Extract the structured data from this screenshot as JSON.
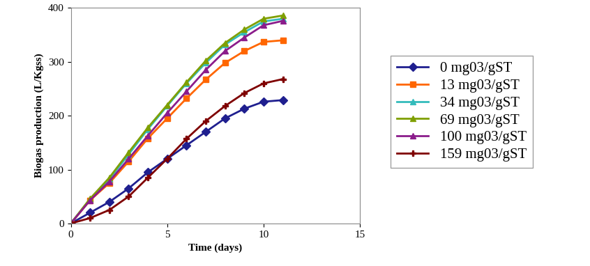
{
  "chart_data": {
    "type": "line",
    "x_label": "Time (days)",
    "y_label": "Biogas production (L/Kgss)",
    "x": [
      0,
      1,
      2,
      3,
      4,
      5,
      6,
      7,
      8,
      9,
      10,
      11
    ],
    "series": [
      {
        "name": "0 mg03/gST",
        "color": "#1F1F8F",
        "marker": "diamond",
        "values": [
          0,
          20,
          40,
          65,
          95,
          120,
          145,
          170,
          195,
          213,
          226,
          229
        ]
      },
      {
        "name": "13 mg03/gST",
        "color": "#FF6600",
        "marker": "square",
        "values": [
          0,
          43,
          75,
          115,
          158,
          195,
          232,
          267,
          298,
          320,
          337,
          340
        ]
      },
      {
        "name": "34 mg03/gST",
        "color": "#33BBBB",
        "marker": "triangle",
        "values": [
          0,
          45,
          82,
          128,
          175,
          218,
          260,
          298,
          332,
          355,
          375,
          380
        ]
      },
      {
        "name": "69 mg03/gST",
        "color": "#7F9F00",
        "marker": "triangle",
        "values": [
          0,
          46,
          85,
          132,
          178,
          220,
          262,
          302,
          335,
          360,
          380,
          386
        ]
      },
      {
        "name": "100 mg03/gST",
        "color": "#8B1C8B",
        "marker": "triangle",
        "values": [
          0,
          43,
          78,
          120,
          163,
          205,
          245,
          285,
          320,
          345,
          368,
          376
        ]
      },
      {
        "name": "159 mg03/gST",
        "color": "#7F0000",
        "marker": "plus",
        "values": [
          0,
          10,
          25,
          50,
          85,
          120,
          157,
          190,
          218,
          242,
          260,
          268
        ]
      }
    ],
    "xlim": [
      0,
      15
    ],
    "xticks": [
      0,
      5,
      10,
      15
    ],
    "ylim": [
      0,
      400
    ],
    "yticks": [
      0,
      100,
      200,
      300,
      400
    ],
    "grid": false,
    "legend": "right"
  }
}
